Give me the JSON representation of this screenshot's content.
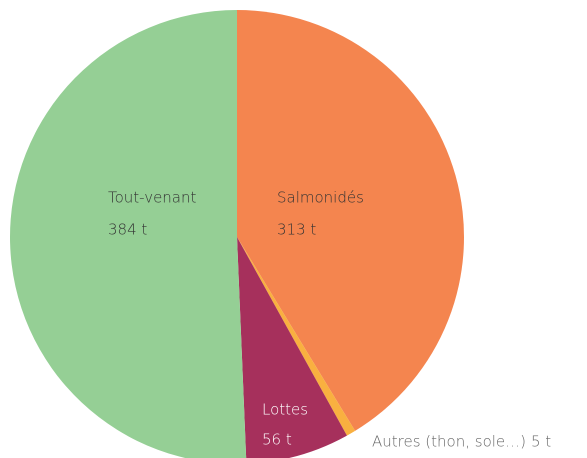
{
  "chart_data": {
    "type": "pie",
    "categories": [
      "Salmonidés",
      "Autres (thon, sole…)",
      "Lottes",
      "Tout-venant"
    ],
    "values": [
      313,
      5,
      56,
      384
    ],
    "value_labels": [
      "313 t",
      "5 t",
      "56 t",
      "384 t"
    ],
    "colors": [
      "#f4854f",
      "#f9b040",
      "#a6305c",
      "#95cf95"
    ]
  }
}
